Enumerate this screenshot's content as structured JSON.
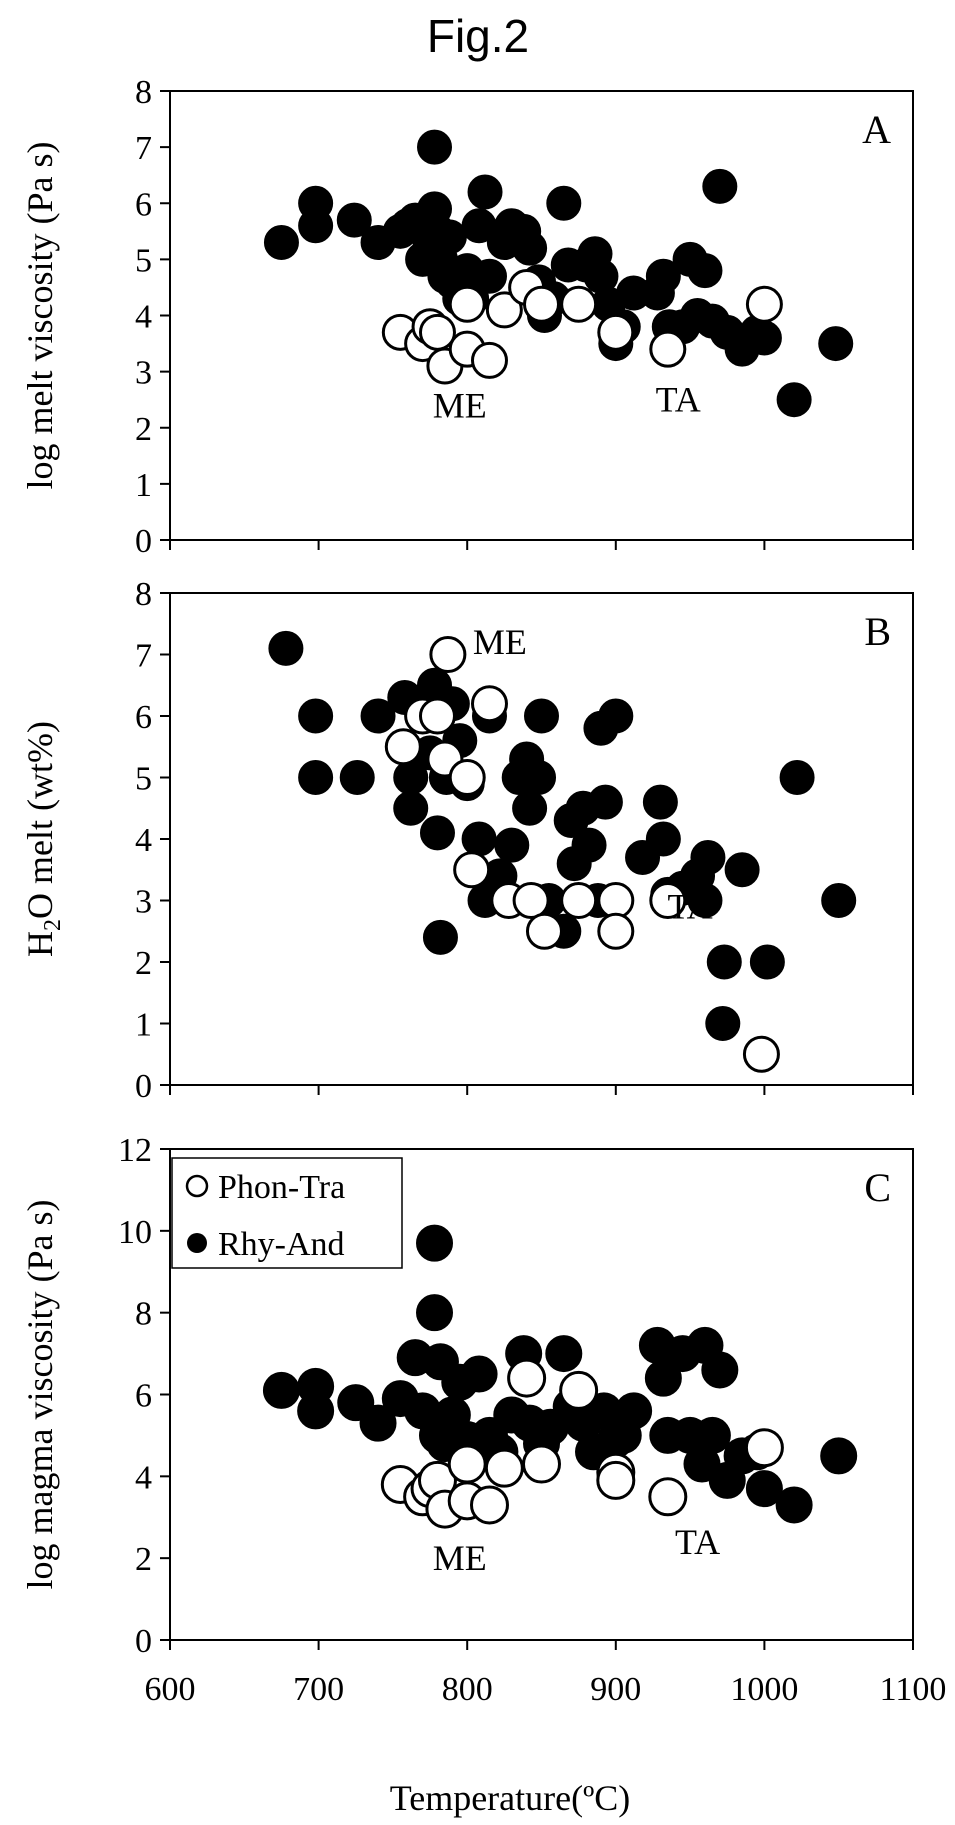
{
  "figure_title": "Fig.2",
  "colors": {
    "filled": "#000000",
    "open_fill": "#ffffff",
    "open_stroke": "#000000"
  },
  "legend": {
    "open_label": "Phon-Tra",
    "filled_label": "Rhy-And"
  },
  "x_axis": {
    "label": "Temperature(ºC)",
    "ticks": [
      "600",
      "700",
      "800",
      "900",
      "1000",
      "1100"
    ]
  },
  "chart_data": [
    {
      "type": "scatter",
      "panel": "A",
      "ylabel": "log melt viscosity (Pa s)",
      "xlim": [
        600,
        1100
      ],
      "ylim": [
        0,
        8
      ],
      "yticks": [
        0,
        1,
        2,
        3,
        4,
        5,
        6,
        7,
        8
      ],
      "annotations": [
        {
          "text": "ME",
          "x": 795,
          "y": 2.4
        },
        {
          "text": "TA",
          "x": 942,
          "y": 2.5
        }
      ],
      "series": [
        {
          "name": "Rhy-And",
          "style": "filled",
          "points": [
            [
              675,
              5.3
            ],
            [
              698,
              6.0
            ],
            [
              698,
              5.6
            ],
            [
              724,
              5.7
            ],
            [
              740,
              5.3
            ],
            [
              755,
              5.5
            ],
            [
              760,
              5.6
            ],
            [
              765,
              5.7
            ],
            [
              770,
              5.0
            ],
            [
              775,
              5.3
            ],
            [
              778,
              7.0
            ],
            [
              778,
              5.9
            ],
            [
              780,
              5.5
            ],
            [
              782,
              5.0
            ],
            [
              785,
              4.7
            ],
            [
              788,
              5.4
            ],
            [
              790,
              4.6
            ],
            [
              795,
              4.3
            ],
            [
              800,
              4.8
            ],
            [
              803,
              4.3
            ],
            [
              808,
              5.6
            ],
            [
              812,
              6.2
            ],
            [
              815,
              4.7
            ],
            [
              825,
              5.3
            ],
            [
              830,
              5.6
            ],
            [
              838,
              5.5
            ],
            [
              842,
              5.2
            ],
            [
              848,
              4.6
            ],
            [
              852,
              4.0
            ],
            [
              858,
              4.3
            ],
            [
              865,
              6.0
            ],
            [
              868,
              4.9
            ],
            [
              875,
              4.2
            ],
            [
              880,
              4.9
            ],
            [
              886,
              5.1
            ],
            [
              890,
              4.7
            ],
            [
              895,
              4.2
            ],
            [
              900,
              3.5
            ],
            [
              905,
              3.8
            ],
            [
              912,
              4.4
            ],
            [
              928,
              4.4
            ],
            [
              932,
              4.7
            ],
            [
              936,
              3.8
            ],
            [
              945,
              3.8
            ],
            [
              950,
              5.0
            ],
            [
              955,
              4.0
            ],
            [
              960,
              4.8
            ],
            [
              965,
              3.9
            ],
            [
              970,
              6.3
            ],
            [
              975,
              3.7
            ],
            [
              985,
              3.4
            ],
            [
              995,
              3.7
            ],
            [
              1000,
              3.6
            ],
            [
              1020,
              2.5
            ],
            [
              1048,
              3.5
            ]
          ]
        },
        {
          "name": "Phon-Tra",
          "style": "open",
          "points": [
            [
              755,
              3.7
            ],
            [
              770,
              3.5
            ],
            [
              775,
              3.8
            ],
            [
              780,
              3.7
            ],
            [
              785,
              3.1
            ],
            [
              800,
              3.4
            ],
            [
              800,
              4.2
            ],
            [
              815,
              3.2
            ],
            [
              825,
              4.1
            ],
            [
              840,
              4.5
            ],
            [
              850,
              4.2
            ],
            [
              875,
              4.2
            ],
            [
              900,
              3.7
            ],
            [
              935,
              3.4
            ],
            [
              1000,
              4.2
            ]
          ]
        }
      ]
    },
    {
      "type": "scatter",
      "panel": "B",
      "ylabel": "H₂O melt (wt%)",
      "ylabel_main": "H",
      "ylabel_sub": "2",
      "ylabel_rest": "O melt (wt%)",
      "xlim": [
        600,
        1100
      ],
      "ylim": [
        0,
        8
      ],
      "yticks": [
        0,
        1,
        2,
        3,
        4,
        5,
        6,
        7,
        8
      ],
      "annotations": [
        {
          "text": "ME",
          "x": 822,
          "y": 7.2
        },
        {
          "text": "TA",
          "x": 950,
          "y": 2.9
        }
      ],
      "series": [
        {
          "name": "Rhy-And",
          "style": "filled",
          "points": [
            [
              678,
              7.1
            ],
            [
              698,
              6.0
            ],
            [
              698,
              5.0
            ],
            [
              726,
              5.0
            ],
            [
              740,
              6.0
            ],
            [
              758,
              6.3
            ],
            [
              762,
              5.0
            ],
            [
              762,
              4.5
            ],
            [
              768,
              6.2
            ],
            [
              772,
              6.0
            ],
            [
              775,
              5.4
            ],
            [
              778,
              6.5
            ],
            [
              780,
              4.1
            ],
            [
              782,
              2.4
            ],
            [
              786,
              5.0
            ],
            [
              790,
              6.2
            ],
            [
              795,
              5.6
            ],
            [
              800,
              4.9
            ],
            [
              808,
              4.0
            ],
            [
              812,
              3.0
            ],
            [
              815,
              6.0
            ],
            [
              822,
              3.4
            ],
            [
              830,
              3.9
            ],
            [
              835,
              5.0
            ],
            [
              840,
              5.3
            ],
            [
              842,
              4.5
            ],
            [
              845,
              3.0
            ],
            [
              848,
              5.0
            ],
            [
              850,
              6.0
            ],
            [
              855,
              3.0
            ],
            [
              865,
              2.5
            ],
            [
              870,
              4.3
            ],
            [
              872,
              3.6
            ],
            [
              878,
              4.5
            ],
            [
              882,
              3.9
            ],
            [
              888,
              3.0
            ],
            [
              890,
              5.8
            ],
            [
              893,
              4.6
            ],
            [
              900,
              6.0
            ],
            [
              918,
              3.7
            ],
            [
              930,
              4.6
            ],
            [
              932,
              4.0
            ],
            [
              935,
              3.1
            ],
            [
              945,
              3.2
            ],
            [
              955,
              3.4
            ],
            [
              960,
              3.0
            ],
            [
              962,
              3.7
            ],
            [
              972,
              1.0
            ],
            [
              973,
              2.0
            ],
            [
              985,
              3.5
            ],
            [
              1002,
              2.0
            ],
            [
              1022,
              5.0
            ],
            [
              1050,
              3.0
            ]
          ]
        },
        {
          "name": "Phon-Tra",
          "style": "open",
          "points": [
            [
              757,
              5.5
            ],
            [
              770,
              6.0
            ],
            [
              780,
              6.0
            ],
            [
              785,
              5.3
            ],
            [
              787,
              7.0
            ],
            [
              800,
              5.0
            ],
            [
              803,
              3.5
            ],
            [
              815,
              6.2
            ],
            [
              828,
              3.0
            ],
            [
              843,
              3.0
            ],
            [
              852,
              2.5
            ],
            [
              875,
              3.0
            ],
            [
              900,
              3.0
            ],
            [
              900,
              2.5
            ],
            [
              935,
              3.0
            ],
            [
              998,
              0.5
            ]
          ]
        }
      ]
    },
    {
      "type": "scatter",
      "panel": "C",
      "ylabel": "log magma viscosity (Pa s)",
      "xlim": [
        600,
        1100
      ],
      "ylim": [
        0,
        12
      ],
      "yticks": [
        0,
        2,
        4,
        6,
        8,
        10,
        12
      ],
      "legend_position": "top-left",
      "annotations": [
        {
          "text": "ME",
          "x": 795,
          "y": 2.0
        },
        {
          "text": "TA",
          "x": 955,
          "y": 2.4
        }
      ],
      "series": [
        {
          "name": "Rhy-And",
          "style": "filled",
          "points": [
            [
              675,
              6.1
            ],
            [
              698,
              6.2
            ],
            [
              698,
              5.6
            ],
            [
              725,
              5.8
            ],
            [
              740,
              5.3
            ],
            [
              755,
              5.9
            ],
            [
              765,
              6.9
            ],
            [
              770,
              5.6
            ],
            [
              778,
              9.7
            ],
            [
              778,
              8.0
            ],
            [
              780,
              5.0
            ],
            [
              782,
              6.8
            ],
            [
              785,
              4.8
            ],
            [
              790,
              5.5
            ],
            [
              795,
              6.3
            ],
            [
              800,
              4.9
            ],
            [
              808,
              6.5
            ],
            [
              815,
              5.0
            ],
            [
              822,
              4.6
            ],
            [
              830,
              5.5
            ],
            [
              838,
              7.0
            ],
            [
              842,
              5.3
            ],
            [
              850,
              4.8
            ],
            [
              856,
              5.2
            ],
            [
              865,
              7.0
            ],
            [
              870,
              5.7
            ],
            [
              878,
              5.3
            ],
            [
              885,
              4.6
            ],
            [
              892,
              5.6
            ],
            [
              900,
              4.9
            ],
            [
              905,
              5.0
            ],
            [
              912,
              5.6
            ],
            [
              928,
              7.2
            ],
            [
              932,
              6.4
            ],
            [
              935,
              5.0
            ],
            [
              945,
              7.0
            ],
            [
              950,
              5.0
            ],
            [
              958,
              4.3
            ],
            [
              960,
              7.2
            ],
            [
              965,
              5.0
            ],
            [
              970,
              6.6
            ],
            [
              975,
              3.9
            ],
            [
              985,
              4.5
            ],
            [
              995,
              4.6
            ],
            [
              1000,
              3.7
            ],
            [
              1020,
              3.3
            ],
            [
              1050,
              4.5
            ]
          ]
        },
        {
          "name": "Phon-Tra",
          "style": "open",
          "points": [
            [
              755,
              3.8
            ],
            [
              770,
              3.5
            ],
            [
              775,
              3.7
            ],
            [
              780,
              3.9
            ],
            [
              785,
              3.2
            ],
            [
              800,
              3.4
            ],
            [
              800,
              4.3
            ],
            [
              815,
              3.3
            ],
            [
              825,
              4.2
            ],
            [
              840,
              6.4
            ],
            [
              850,
              4.3
            ],
            [
              875,
              6.1
            ],
            [
              900,
              4.1
            ],
            [
              900,
              3.9
            ],
            [
              935,
              3.5
            ],
            [
              1000,
              4.7
            ]
          ]
        }
      ]
    }
  ]
}
